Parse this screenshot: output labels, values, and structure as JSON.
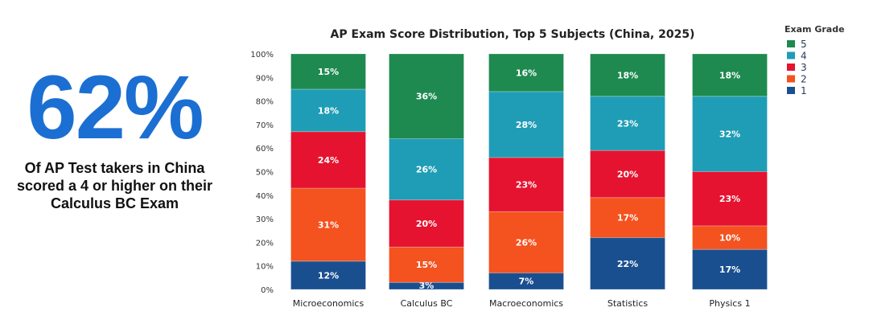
{
  "stat": {
    "value": "62%",
    "caption_lines": [
      "Of AP Test takers in China",
      "scored a 4 or higher on their",
      "Calculus BC Exam"
    ],
    "color": "#1b6fd2"
  },
  "chart_data": {
    "type": "bar",
    "stacked": true,
    "title": "AP Exam Score Distribution, Top 5 Subjects (China, 2025)",
    "xlabel": "",
    "ylabel": "",
    "ylim": [
      0,
      100
    ],
    "yticks": [
      "0%",
      "10%",
      "20%",
      "30%",
      "40%",
      "50%",
      "60%",
      "70%",
      "80%",
      "90%",
      "100%"
    ],
    "categories": [
      "Microeconomics",
      "Calculus BC",
      "Macroeconomics",
      "Statistics",
      "Physics 1"
    ],
    "legend_title": "Exam Grade",
    "legend_position": "top-right",
    "grid": false,
    "series": [
      {
        "name": "1",
        "color": "#1a4f8f",
        "values": [
          12,
          3,
          7,
          22,
          17
        ]
      },
      {
        "name": "2",
        "color": "#f4521f",
        "values": [
          31,
          15,
          26,
          17,
          10
        ]
      },
      {
        "name": "3",
        "color": "#e5132f",
        "values": [
          24,
          20,
          23,
          20,
          23
        ]
      },
      {
        "name": "4",
        "color": "#1f9db6",
        "values": [
          18,
          26,
          28,
          23,
          32
        ]
      },
      {
        "name": "5",
        "color": "#1e8a50",
        "values": [
          15,
          36,
          16,
          18,
          18
        ]
      }
    ]
  }
}
